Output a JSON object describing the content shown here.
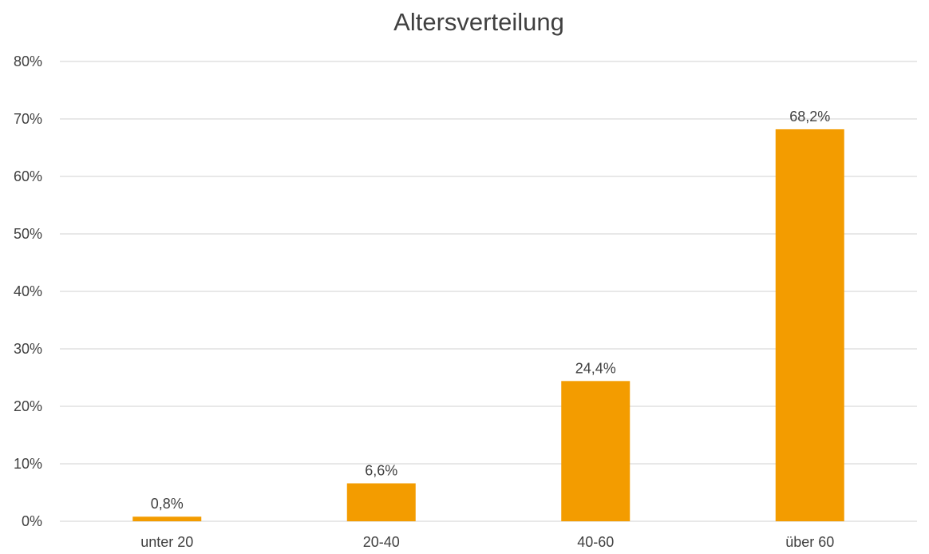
{
  "chart_data": {
    "type": "bar",
    "title": "Altersverteilung",
    "categories": [
      "unter 20",
      "20-40",
      "40-60",
      "über 60"
    ],
    "values": [
      0.8,
      6.6,
      24.4,
      68.2
    ],
    "data_labels": [
      "0,8%",
      "6,6%",
      "24,4%",
      "68,2%"
    ],
    "yticks": [
      0,
      10,
      20,
      30,
      40,
      50,
      60,
      70,
      80
    ],
    "ytick_labels": [
      "0%",
      "10%",
      "20%",
      "30%",
      "40%",
      "50%",
      "60%",
      "70%",
      "80%"
    ],
    "ylim": [
      0,
      80
    ],
    "grid": true,
    "legend": "none",
    "bar_color": "#f39c00"
  }
}
